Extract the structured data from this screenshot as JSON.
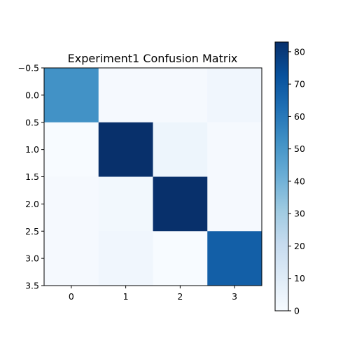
{
  "chart_data": {
    "type": "heatmap",
    "title": "Experiment1 Confusion Matrix",
    "xlabel": "",
    "ylabel": "",
    "colormap": "Blues",
    "color_range": [
      0,
      83
    ],
    "matrix": [
      [
        52,
        1,
        1,
        3
      ],
      [
        0,
        83,
        4,
        1
      ],
      [
        1,
        2,
        83,
        1
      ],
      [
        1,
        3,
        0,
        68
      ]
    ],
    "x_ticks": [
      "0",
      "1",
      "2",
      "3"
    ],
    "y_ticks": [
      "−0.5",
      "0.0",
      "0.5",
      "1.0",
      "1.5",
      "2.0",
      "2.5",
      "3.0",
      "3.5"
    ],
    "colorbar_ticks": [
      "0",
      "10",
      "20",
      "30",
      "40",
      "50",
      "60",
      "70",
      "80"
    ],
    "colorbar_values": [
      0,
      10,
      20,
      30,
      40,
      50,
      60,
      70,
      80
    ]
  }
}
